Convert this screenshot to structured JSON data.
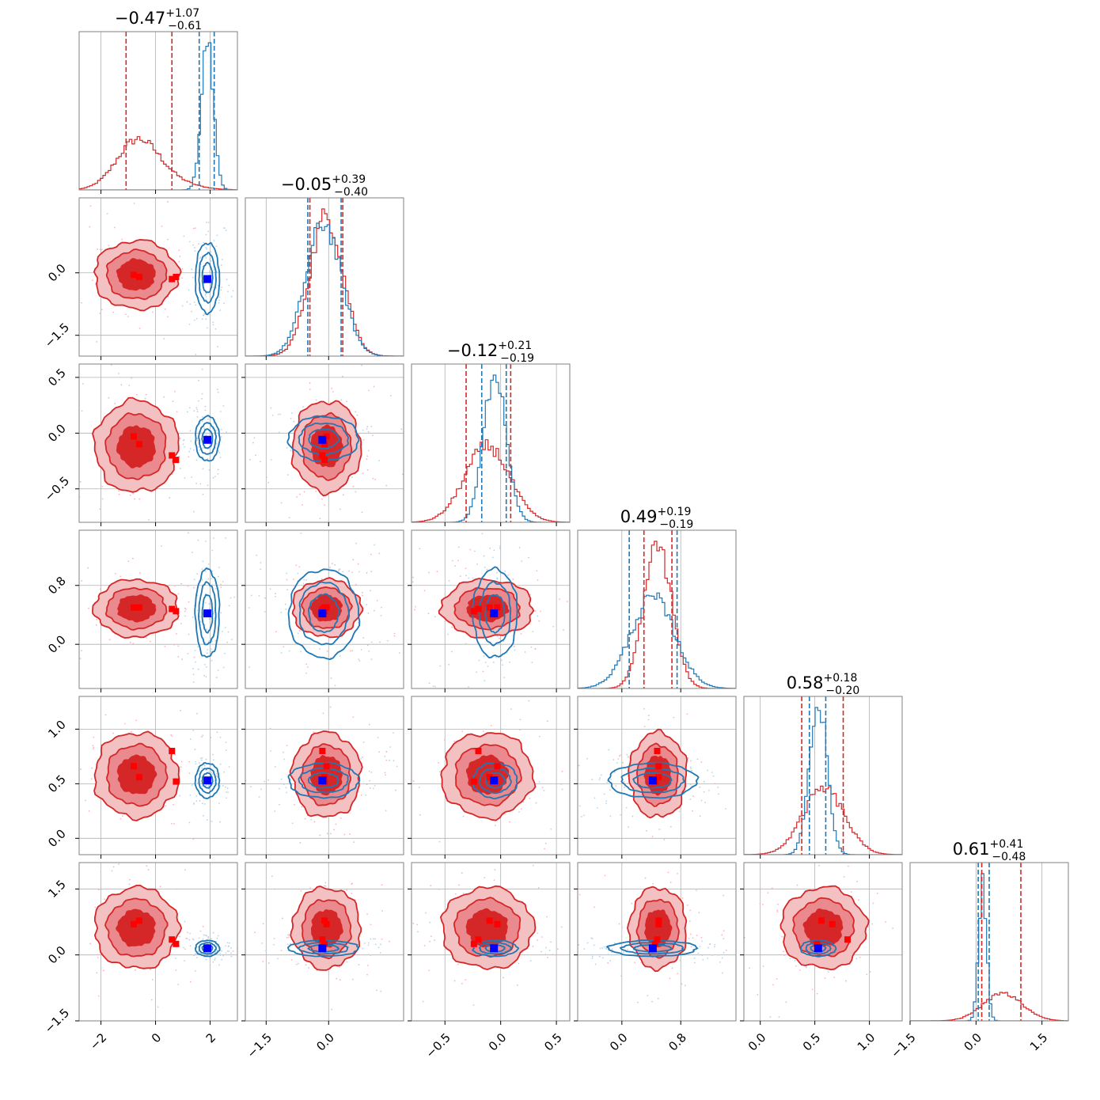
{
  "chart_data": {
    "type": "corner",
    "n_params": 6,
    "grid": true,
    "colors": {
      "series_a": "#d62728",
      "series_a_fill_outer": "#f4c1c3",
      "series_a_fill_mid": "#ea8a8e",
      "series_a_fill_inner": "#d62728",
      "series_b": "#1f77b4",
      "marker_a": "#ff0000",
      "marker_b": "#0000ff"
    },
    "params": [
      {
        "index": 0,
        "range": [
          -2.8,
          3.0
        ],
        "ticks": [
          -2,
          0,
          2
        ],
        "tick_labels": [
          "−2",
          "0",
          "2"
        ],
        "title_main": "−0.47",
        "title_sup": "+1.07",
        "title_sub": "−0.61",
        "series_a": {
          "mean": -0.7,
          "sd": 0.75,
          "skew_right": 1.2,
          "quantiles": [
            -1.08,
            0.6
          ]
        },
        "series_b": {
          "mean": 1.9,
          "sd": 0.22,
          "quantiles": [
            1.6,
            2.15
          ]
        },
        "marker_b": 1.9,
        "marker_a": [
          -0.8,
          -0.6,
          0.6,
          0.75
        ]
      },
      {
        "index": 1,
        "range": [
          -2.0,
          1.8
        ],
        "ticks": [
          -1.5,
          0.0
        ],
        "tick_labels": [
          "−1.5",
          "0.0"
        ],
        "title_main": "−0.05",
        "title_sup": "+0.39",
        "title_sub": "−0.40",
        "series_a": {
          "mean": -0.05,
          "sd": 0.4,
          "quantiles": [
            -0.45,
            0.34
          ]
        },
        "series_b": {
          "mean": -0.12,
          "sd": 0.42,
          "quantiles": [
            -0.5,
            0.3
          ]
        },
        "marker_b": -0.15,
        "marker_a": [
          -0.05,
          -0.1,
          -0.15,
          -0.1
        ]
      },
      {
        "index": 2,
        "range": [
          -0.8,
          0.62
        ],
        "ticks": [
          -0.5,
          0.0,
          0.5
        ],
        "tick_labels": [
          "−0.5",
          "0.0",
          "0.5"
        ],
        "title_main": "−0.12",
        "title_sup": "+0.21",
        "title_sub": "−0.19",
        "series_a": {
          "mean": -0.12,
          "sd": 0.2,
          "quantiles": [
            -0.31,
            0.09
          ]
        },
        "series_b": {
          "mean": -0.05,
          "sd": 0.1,
          "quantiles": [
            -0.17,
            0.05
          ]
        },
        "marker_b": -0.06,
        "marker_a": [
          -0.03,
          -0.1,
          -0.2,
          -0.24
        ]
      },
      {
        "index": 3,
        "range": [
          -0.6,
          1.55
        ],
        "ticks": [
          0.0,
          0.8
        ],
        "tick_labels": [
          "0.0",
          "0.8"
        ],
        "title_main": "0.49",
        "title_sup": "+0.19",
        "title_sub": "−0.19",
        "series_a": {
          "mean": 0.49,
          "sd": 0.19,
          "quantiles": [
            0.3,
            0.68
          ]
        },
        "series_b": {
          "mean": 0.42,
          "sd": 0.3,
          "quantiles": [
            0.1,
            0.75
          ]
        },
        "marker_b": 0.42,
        "marker_a": [
          0.5,
          0.5,
          0.48,
          0.45
        ]
      },
      {
        "index": 4,
        "range": [
          -0.15,
          1.3
        ],
        "ticks": [
          0.0,
          0.5,
          1.0
        ],
        "tick_labels": [
          "0.0",
          "0.5",
          "1.0"
        ],
        "title_main": "0.58",
        "title_sup": "+0.18",
        "title_sub": "−0.20",
        "series_a": {
          "mean": 0.58,
          "sd": 0.19,
          "quantiles": [
            0.38,
            0.76
          ]
        },
        "series_b": {
          "mean": 0.53,
          "sd": 0.08,
          "quantiles": [
            0.45,
            0.6
          ]
        },
        "marker_b": 0.53,
        "marker_a": [
          0.66,
          0.56,
          0.8,
          0.52
        ]
      },
      {
        "index": 5,
        "range": [
          -1.5,
          2.1
        ],
        "ticks": [
          -1.5,
          0.0,
          1.5
        ],
        "tick_labels": [
          "−1.5",
          "0.0",
          "1.5"
        ],
        "title_main": "0.61",
        "title_sup": "+0.41",
        "title_sub": "−0.48",
        "series_a": {
          "mean": 0.61,
          "sd": 0.45,
          "quantiles": [
            0.13,
            1.02
          ]
        },
        "series_b": {
          "mean": 0.15,
          "sd": 0.09,
          "quantiles": [
            0.05,
            0.3
          ]
        },
        "marker_b": 0.15,
        "marker_a": [
          0.7,
          0.78,
          0.35,
          0.25
        ]
      }
    ]
  }
}
